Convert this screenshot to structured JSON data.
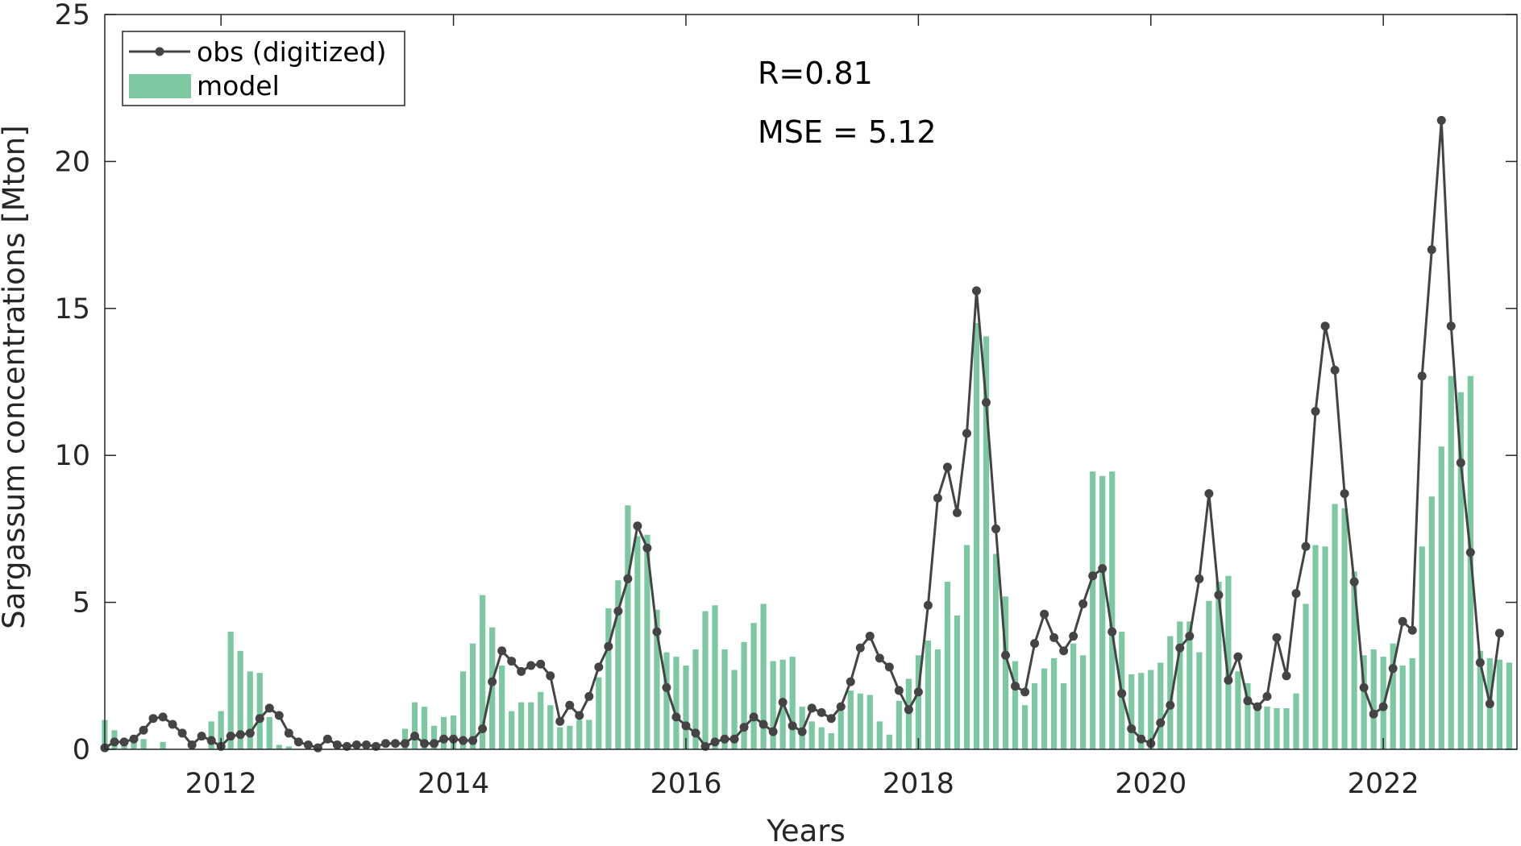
{
  "chart_data": {
    "type": "bar+line",
    "xlabel": "Years",
    "ylabel": "Sargassum concentrations [Mton]",
    "xlim": [
      2011.0,
      2023.15
    ],
    "ylim": [
      0,
      25
    ],
    "xticks": [
      2012,
      2014,
      2016,
      2018,
      2020,
      2022
    ],
    "yticks": [
      0,
      5,
      10,
      15,
      20,
      25
    ],
    "grid": false,
    "legend_placement": "top-left",
    "colors": {
      "model": "#7cc8a0",
      "obs": "#444444",
      "axis": "#262626"
    },
    "annotations": [
      "R=0.81",
      "MSE = 5.12"
    ],
    "x_start": "2011-01",
    "x_step": "1 month",
    "series": [
      {
        "name": "model",
        "kind": "bar",
        "values": [
          1.0,
          0.65,
          0.2,
          0.4,
          0.35,
          0.0,
          0.25,
          0.0,
          0.0,
          0.0,
          0.0,
          0.95,
          1.3,
          4.0,
          3.35,
          2.65,
          2.6,
          1.1,
          0.15,
          0.1,
          0.0,
          0.0,
          0.0,
          0.0,
          0.0,
          0.0,
          0.0,
          0.0,
          0.0,
          0.0,
          0.0,
          0.7,
          1.6,
          1.45,
          0.8,
          1.1,
          1.15,
          2.65,
          3.6,
          5.25,
          4.15,
          2.85,
          1.3,
          1.6,
          1.6,
          1.95,
          1.5,
          0.75,
          0.8,
          1.0,
          1.0,
          2.45,
          4.8,
          5.75,
          8.3,
          7.25,
          7.3,
          4.75,
          3.3,
          3.15,
          2.85,
          3.4,
          4.7,
          4.9,
          3.4,
          2.7,
          3.65,
          4.3,
          4.95,
          3.0,
          3.05,
          3.15,
          1.45,
          0.95,
          0.75,
          0.55,
          1.3,
          2.0,
          1.9,
          1.85,
          0.95,
          0.5,
          1.65,
          2.4,
          3.2,
          3.7,
          3.4,
          5.7,
          4.55,
          6.95,
          14.5,
          14.05,
          6.65,
          5.2,
          3.0,
          1.5,
          2.25,
          2.75,
          3.1,
          2.25,
          3.6,
          3.2,
          9.45,
          9.3,
          9.45,
          4.0,
          2.55,
          2.6,
          2.7,
          2.95,
          3.85,
          4.35,
          4.35,
          3.3,
          5.05,
          5.7,
          5.9,
          2.65,
          2.25,
          1.55,
          1.45,
          1.4,
          1.4,
          1.9,
          4.95,
          6.95,
          6.9,
          8.35,
          8.2,
          6.05,
          3.2,
          3.4,
          3.15,
          3.6,
          2.85,
          3.1,
          6.9,
          8.6,
          10.3,
          12.7,
          12.15,
          12.7,
          3.35,
          3.1,
          3.05,
          2.95
        ]
      },
      {
        "name": "obs (digitized)",
        "kind": "line",
        "values": [
          0.05,
          0.25,
          0.25,
          0.35,
          0.65,
          1.05,
          1.1,
          0.85,
          0.55,
          0.15,
          0.45,
          0.3,
          0.1,
          0.45,
          0.5,
          0.55,
          1.05,
          1.4,
          1.15,
          0.55,
          0.25,
          0.15,
          0.05,
          0.35,
          0.15,
          0.1,
          0.15,
          0.15,
          0.1,
          0.2,
          0.2,
          0.2,
          0.45,
          0.2,
          0.2,
          0.35,
          0.35,
          0.3,
          0.3,
          0.7,
          2.3,
          3.35,
          3.0,
          2.65,
          2.85,
          2.9,
          2.5,
          0.95,
          1.5,
          1.15,
          1.8,
          2.8,
          3.5,
          4.7,
          5.8,
          7.6,
          6.85,
          4.0,
          2.1,
          1.1,
          0.8,
          0.55,
          0.1,
          0.25,
          0.35,
          0.35,
          0.75,
          1.1,
          0.85,
          0.6,
          1.6,
          0.8,
          0.6,
          1.4,
          1.25,
          1.05,
          1.45,
          2.3,
          3.45,
          3.85,
          3.1,
          2.8,
          2.0,
          1.35,
          1.95,
          4.9,
          8.55,
          9.6,
          8.05,
          10.75,
          15.6,
          11.8,
          7.5,
          3.2,
          2.15,
          1.95,
          3.6,
          4.6,
          3.8,
          3.35,
          3.85,
          4.95,
          5.9,
          6.15,
          4.0,
          1.9,
          0.7,
          0.35,
          0.2,
          0.9,
          1.5,
          3.45,
          3.85,
          5.8,
          8.7,
          5.25,
          2.35,
          3.15,
          1.65,
          1.45,
          1.8,
          3.8,
          2.5,
          5.3,
          6.9,
          11.5,
          14.4,
          12.9,
          8.7,
          5.7,
          2.1,
          1.2,
          1.45,
          2.75,
          4.35,
          4.05,
          12.7,
          17.0,
          21.4,
          14.4,
          9.75,
          6.7,
          2.95,
          1.55,
          3.95
        ]
      }
    ]
  }
}
